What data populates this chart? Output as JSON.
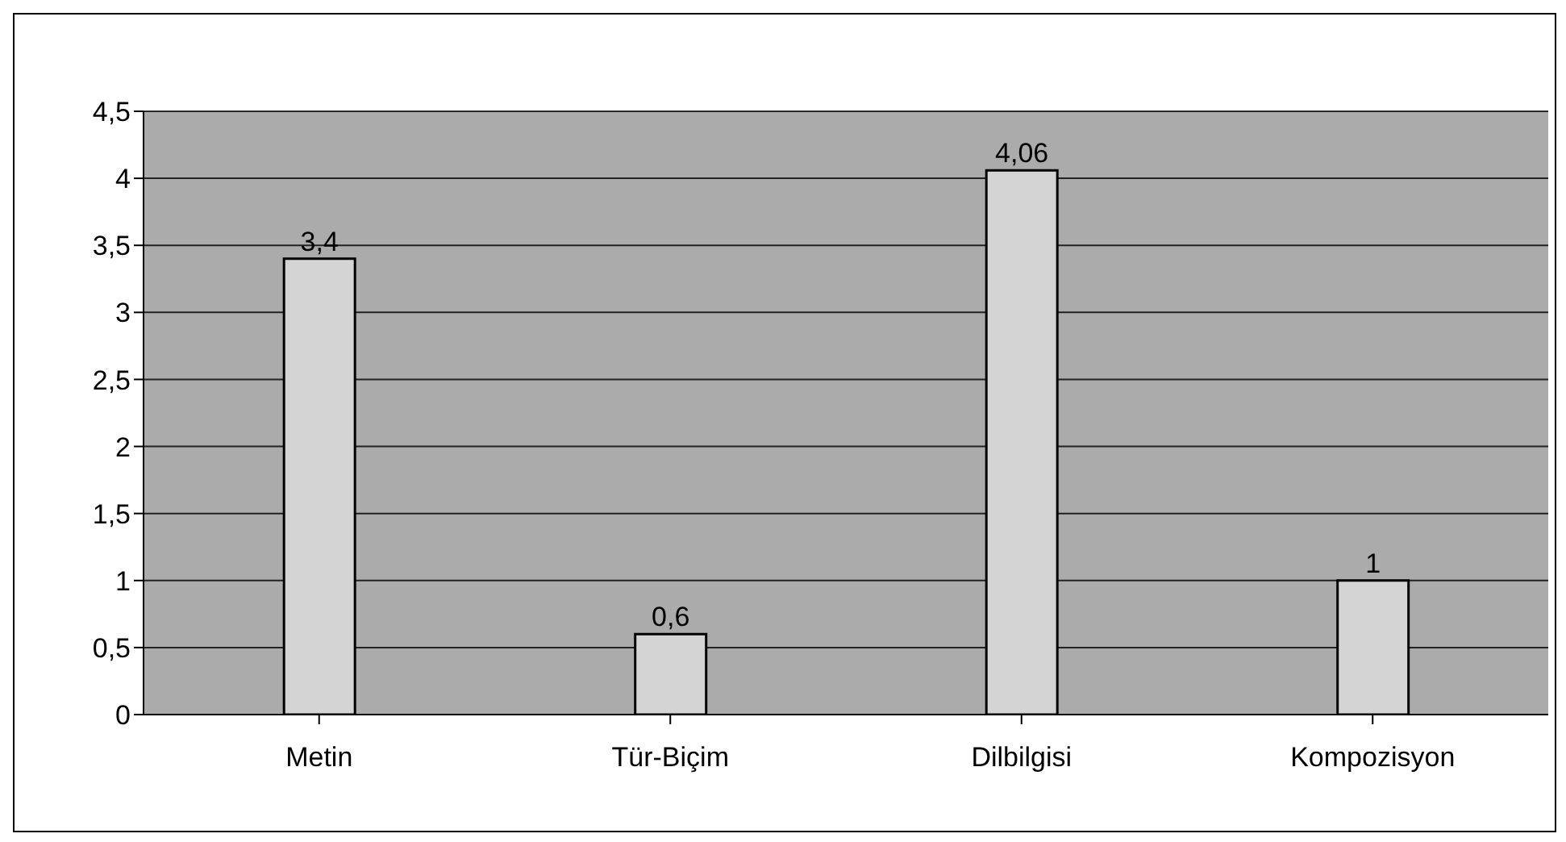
{
  "chart_data": {
    "type": "bar",
    "categories": [
      "Metin",
      "Tür-Biçim",
      "Dilbilgisi",
      "Kompozisyon"
    ],
    "values": [
      3.4,
      0.6,
      4.06,
      1
    ],
    "value_labels": [
      "3,4",
      "0,6",
      "4,06",
      "1"
    ],
    "color": "#d4d4d4",
    "ylim": [
      0,
      4.5
    ],
    "yticks": [
      {
        "value": 0,
        "label": "0"
      },
      {
        "value": 0.5,
        "label": "0,5"
      },
      {
        "value": 1,
        "label": "1"
      },
      {
        "value": 1.5,
        "label": "1,5"
      },
      {
        "value": 2,
        "label": "2"
      },
      {
        "value": 2.5,
        "label": "2,5"
      },
      {
        "value": 3,
        "label": "3"
      },
      {
        "value": 3.5,
        "label": "3,5"
      },
      {
        "value": 4,
        "label": "4"
      },
      {
        "value": 4.5,
        "label": "4,5"
      }
    ],
    "grid": "y"
  }
}
